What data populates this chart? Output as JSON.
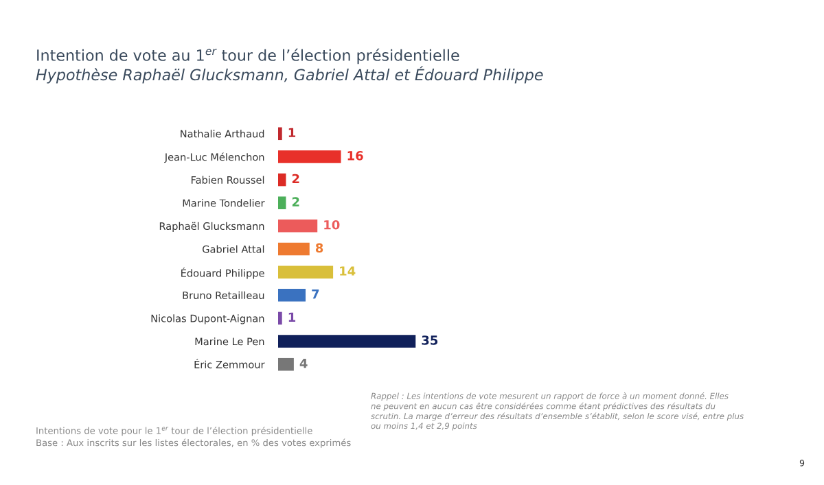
{
  "chart_data": {
    "type": "bar",
    "orientation": "horizontal",
    "title": "Intention de vote au 1$^{er}$ tour de l’élection présidentielle",
    "subtitle": "Hypothèse Raphaël Glucksmann, Gabriel Attal et Édouard Philippe",
    "categories": [
      "Nathalie Arthaud",
      "Jean-Luc Mélenchon",
      "Fabien Roussel",
      "Marine Tondelier",
      "Raphaël Glucksmann",
      "Gabriel Attal",
      "Édouard Philippe",
      "Bruno Retailleau",
      "Nicolas Dupont-Aignan",
      "Marine Le Pen",
      "Éric Zemmour"
    ],
    "values": [
      1,
      16,
      2,
      2,
      10,
      8,
      14,
      7,
      1,
      35,
      4
    ],
    "colors": [
      "#c0282d",
      "#e8302a",
      "#dc2b25",
      "#4caf5a",
      "#ec5b5b",
      "#ee7a30",
      "#d9bf3a",
      "#3a72c0",
      "#7a4aa8",
      "#10205a",
      "#777777"
    ],
    "data_labels": true,
    "grid": false,
    "legend": false,
    "annotations": [
      "Rappel : Les intentions de vote mesurent un rapport de force à un moment donné. Elles\nne peuvent en aucun cas être considérées comme étant prédictives des résultats du\nscrutin. La marge d’erreur des résultats d’ensemble s’établit, selon le score visé, entre plus\nou moins 1,4 et 2,9 points",
      "Intentions de vote pour le 1$^{er}$ tour de l’élection présidentielle\nBase : Aux inscrits sur les listes électorales, en % des votes exprimés",
      "9"
    ]
  }
}
